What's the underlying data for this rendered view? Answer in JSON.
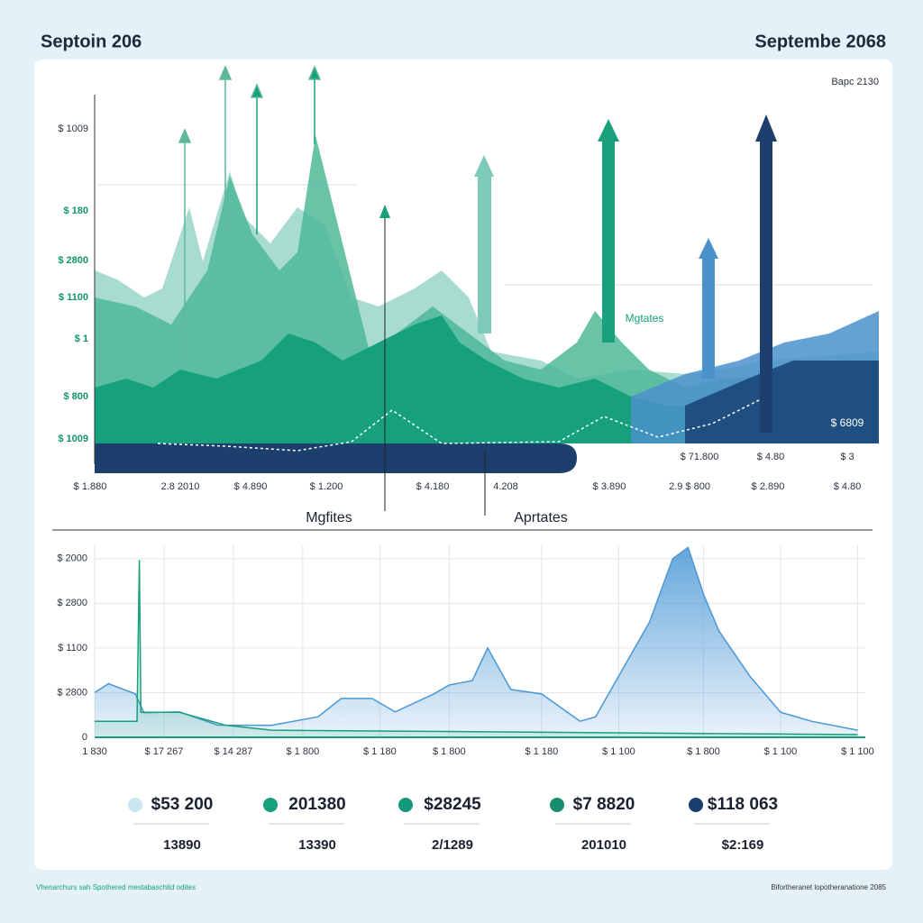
{
  "header": {
    "left": "Septoin 206",
    "right": "Septembe 2068",
    "corner": "Bapc 2130"
  },
  "top_panel": {
    "y_labels": [
      "$ 1009",
      "$ 180",
      "$ 2800",
      "$ 1100",
      "$ 1",
      "$ 800",
      "$ 1009"
    ],
    "x_labels": [
      "$ 1.880",
      "2.8 2010",
      "$ 4.890",
      "$ 1.200",
      "$ 4.180",
      "4.208",
      "$ 3.890",
      "2.9 $ 800",
      "$ 2.890",
      "$ 4.80"
    ],
    "minor_labels": [
      "$ 71.800",
      "$ 4.80",
      "$ 3"
    ],
    "annotations": [
      "$ 6809",
      "Mgtates",
      "Mgfites",
      "Aprtates"
    ]
  },
  "chart_data": {
    "type": "area",
    "xlim": [
      0,
      100
    ],
    "xticks": [
      {
        "value": 0,
        "label": "1 830"
      },
      {
        "value": 9,
        "label": "$ 17 267"
      },
      {
        "value": 18,
        "label": "$ 14 287"
      },
      {
        "value": 27,
        "label": "$ 1 800"
      },
      {
        "value": 37,
        "label": "$ 1 180"
      },
      {
        "value": 46,
        "label": "$ 1 800"
      },
      {
        "value": 58,
        "label": "$ 1 180"
      },
      {
        "value": 68,
        "label": "$ 1 100"
      },
      {
        "value": 79,
        "label": "$ 1 800"
      },
      {
        "value": 89,
        "label": "$ 1 100"
      },
      {
        "value": 99,
        "label": "$ 1 100"
      }
    ],
    "ylim": [
      0,
      4.5
    ],
    "yticks": [
      0,
      {
        "value": 1,
        "label": "$ 2800"
      },
      {
        "value": 2,
        "label": "$ 1100"
      },
      {
        "value": 3,
        "label": "$ 2800"
      },
      {
        "value": 4,
        "label": "$ 2000"
      }
    ],
    "grid": true,
    "series": [
      {
        "color": "#4a97d6",
        "x": [
          0,
          1.8,
          5.3,
          6.4,
          11,
          16,
          23,
          29,
          32,
          36,
          39,
          44,
          46,
          49,
          51,
          54,
          58,
          63,
          65,
          68,
          72,
          75,
          77,
          79,
          81,
          85,
          89,
          93,
          99
        ],
        "values": [
          1.0,
          1.2,
          0.97,
          0.55,
          0.57,
          0.27,
          0.27,
          0.46,
          0.87,
          0.87,
          0.57,
          0.97,
          1.17,
          1.27,
          2.0,
          1.07,
          0.97,
          0.36,
          0.46,
          1.37,
          2.58,
          4.0,
          4.25,
          3.2,
          2.38,
          1.37,
          0.56,
          0.36,
          0.16
        ]
      },
      {
        "color": "#17a07a",
        "x": [
          0,
          5.5,
          5.8,
          6.0,
          11,
          17,
          23,
          99
        ],
        "values": [
          0.36,
          0.36,
          3.97,
          0.56,
          0.56,
          0.27,
          0.16,
          0.06
        ]
      }
    ]
  },
  "summary": [
    {
      "value": "$53 200",
      "sub": "13890",
      "color": "#c9e6f3"
    },
    {
      "value": "201380",
      "sub": "13390",
      "color": "#17a07a"
    },
    {
      "value": "$28245",
      "sub": "2/1289",
      "color": "#15977a"
    },
    {
      "value": "$7 8820",
      "sub": "201010",
      "color": "#178f6f"
    },
    {
      "value": "$118 063",
      "sub": "$2:169",
      "color": "#1a3f6e"
    }
  ],
  "footer": {
    "left": "Vhenarchurs sah Spothered mestabaschitd odites",
    "right": "Bifortheranet lopotheranatione 2085"
  }
}
